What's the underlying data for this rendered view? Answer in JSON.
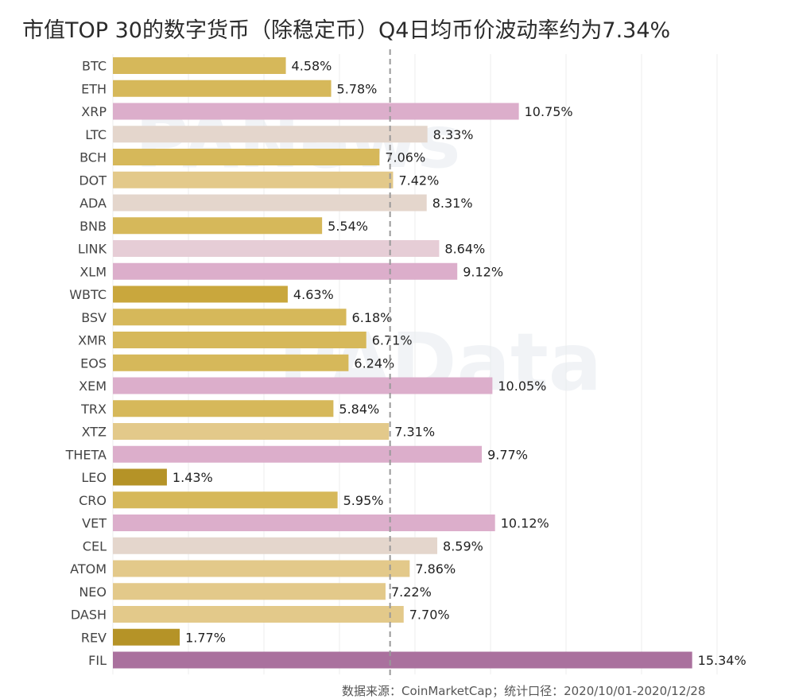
{
  "title": "市值TOP 30的数字货币（除稳定币）Q4日均币价波动率约为7.34%",
  "footer": "数据来源：CoinMarketCap；统计口径：2020/10/01-2020/12/28",
  "watermarks": [
    "PANews",
    "PAData"
  ],
  "colors": {
    "gold": "#d6b85a",
    "light_gold": "#e3c98a",
    "dark_gold": "#b59327",
    "beige": "#e4d6cc",
    "light_pink": "#e6cdd6",
    "pink": "#dcaecb",
    "purple": "#aa719e",
    "reference_line": "#999999",
    "grid": "#eeeeee"
  },
  "chart_data": {
    "type": "bar",
    "orientation": "horizontal",
    "reference_value": 7.34,
    "xlim": [
      0,
      16
    ],
    "categories": [
      "BTC",
      "ETH",
      "XRP",
      "LTC",
      "BCH",
      "DOT",
      "ADA",
      "BNB",
      "LINK",
      "XLM",
      "WBTC",
      "BSV",
      "XMR",
      "EOS",
      "XEM",
      "TRX",
      "XTZ",
      "THETA",
      "LEO",
      "CRO",
      "VET",
      "CEL",
      "ATOM",
      "NEO",
      "DASH",
      "REV",
      "FIL"
    ],
    "values": [
      4.58,
      5.78,
      10.75,
      8.33,
      7.06,
      7.42,
      8.31,
      5.54,
      8.64,
      9.12,
      4.63,
      6.18,
      6.71,
      6.24,
      10.05,
      5.84,
      7.31,
      9.77,
      1.43,
      5.95,
      10.12,
      8.59,
      7.86,
      7.22,
      7.7,
      1.77,
      15.34
    ],
    "value_labels": [
      "4.58%",
      "5.78%",
      "10.75%",
      "8.33%",
      "7.06%",
      "7.42%",
      "8.31%",
      "5.54%",
      "8.64%",
      "9.12%",
      "4.63%",
      "6.18%",
      "6.71%",
      "6.24%",
      "10.05%",
      "5.84%",
      "7.31%",
      "9.77%",
      "1.43%",
      "5.95%",
      "10.12%",
      "8.59%",
      "7.86%",
      "7.22%",
      "7.70%",
      "1.77%",
      "15.34%"
    ],
    "bar_colors": [
      "#d6b85a",
      "#d6b85a",
      "#dcaecb",
      "#e4d6cc",
      "#d6b85a",
      "#e3c98a",
      "#e4d6cc",
      "#d6b85a",
      "#e6cdd6",
      "#dcaecb",
      "#c9a73d",
      "#d6b85a",
      "#d6b85a",
      "#d6b85a",
      "#dcaecb",
      "#d6b85a",
      "#e3c98a",
      "#dcaecb",
      "#b59327",
      "#d6b85a",
      "#dcaecb",
      "#e4d6cc",
      "#e3c98a",
      "#e3c98a",
      "#e3c98a",
      "#b59327",
      "#aa719e"
    ],
    "grid": true
  }
}
